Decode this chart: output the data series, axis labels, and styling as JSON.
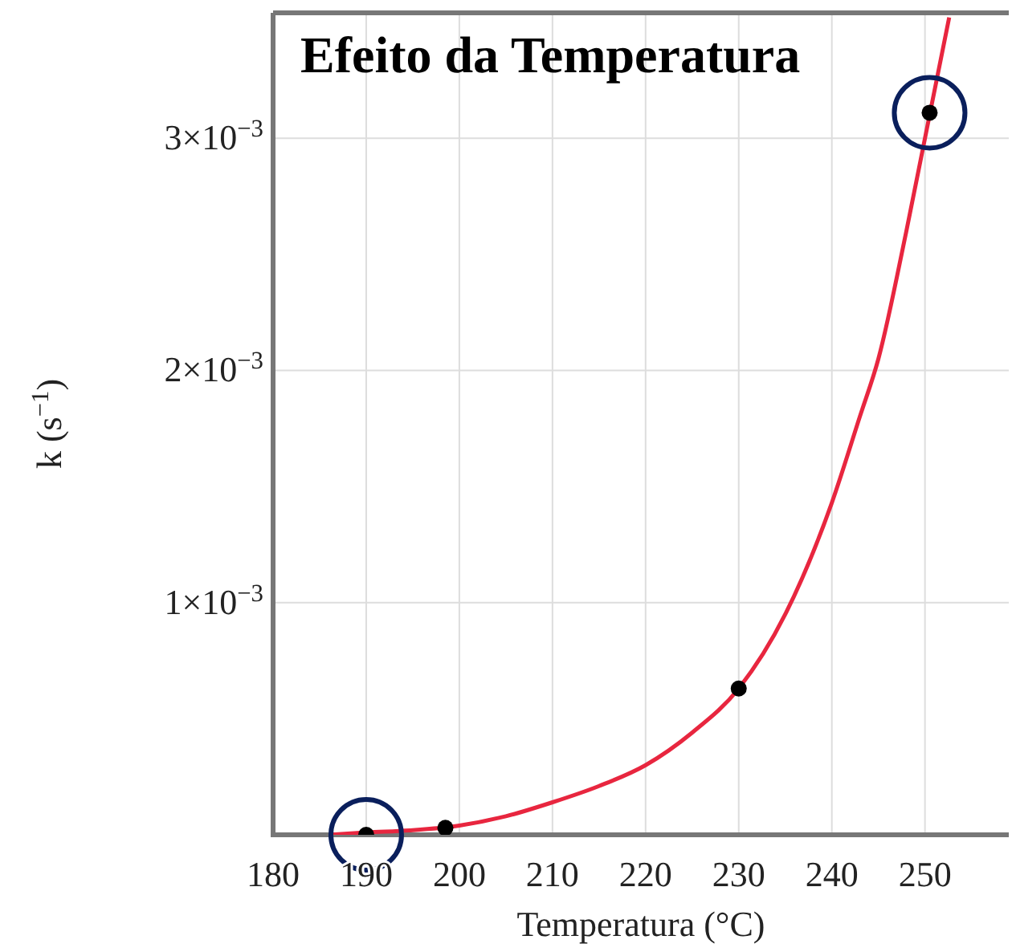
{
  "chart_data": {
    "type": "scatter",
    "title": "Efeito da Temperatura",
    "xlabel": "Temperatura (°C)",
    "ylabel": "k (s$^{−1}$)",
    "xlim": [
      180,
      259
    ],
    "xticks": [
      180,
      190,
      200,
      210,
      220,
      230,
      240,
      250
    ],
    "ylim": [
      0,
      0.00354
    ],
    "yticks": [
      {
        "value": 0.001,
        "label": "1×10$^{−3}$"
      },
      {
        "value": 0.002,
        "label": "2×10$^{−3}$"
      },
      {
        "value": 0.003,
        "label": "3×10$^{−3}$"
      }
    ],
    "grid": true,
    "marker": "circle",
    "series": [
      {
        "type": "line",
        "color": "#e8263f",
        "marker": "none",
        "x": [
          186,
          190,
          195,
          200,
          205,
          210,
          215,
          220,
          225,
          230,
          235,
          240,
          243,
          245,
          248,
          250,
          252.6
        ],
        "values": [
          0,
          1e-05,
          2e-05,
          4e-05,
          8e-05,
          0.00014,
          0.00021,
          0.0003,
          0.00044,
          0.00063,
          0.00095,
          0.00143,
          0.0018,
          0.00205,
          0.0026,
          0.003,
          0.00352
        ]
      },
      {
        "color": "#000000",
        "x": [
          190,
          198.5,
          230,
          250.5
        ],
        "values": [
          0,
          3e-05,
          0.00063,
          0.00311
        ]
      }
    ]
  }
}
